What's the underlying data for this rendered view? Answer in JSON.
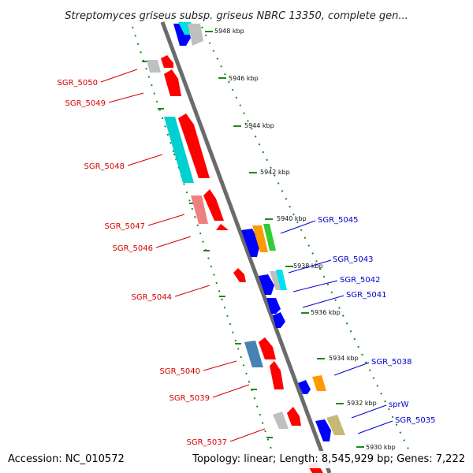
{
  "title": "Streptomyces griseus subsp. griseus NBRC 13350, complete gen...",
  "footer": {
    "accession": "Accession: NC_010572",
    "stats": "Topology: linear; Length: 8,545,929 bp; Genes: 7,222"
  },
  "ticks": [
    "5948 kbp",
    "5946 kbp",
    "5944 kbp",
    "5942 kbp",
    "5940 kbp",
    "5938 kbp",
    "5936 kbp",
    "5934 kbp",
    "5932 kbp",
    "5930 kbp"
  ],
  "genes": [
    {
      "label": "",
      "strand": "plus",
      "color": "#0000ff"
    },
    {
      "label": "",
      "strand": "plus",
      "color": "#00e0e0"
    },
    {
      "label": "",
      "strand": "plus",
      "color": "#c0c0c0"
    },
    {
      "label": "SGR_5050",
      "strand": "minus",
      "color": "#c0c0c0"
    },
    {
      "label": "",
      "strand": "minus",
      "color": "#ff0000"
    },
    {
      "label": "SGR_5049",
      "strand": "minus",
      "color": "#ff0000"
    },
    {
      "label": "SGR_5048",
      "strand": "minus",
      "color": "#00d0d0"
    },
    {
      "label": "",
      "strand": "minus",
      "color": "#ff0000"
    },
    {
      "label": "SGR_5047",
      "strand": "minus",
      "color": "#f08080"
    },
    {
      "label": "SGR_5046",
      "strand": "minus",
      "color": "#ff0000"
    },
    {
      "label": "",
      "strand": "minus",
      "color": "#ff0000"
    },
    {
      "label": "SGR_5045",
      "strand": "plus",
      "color": "#0000ff"
    },
    {
      "label": "",
      "strand": "plus",
      "color": "#ff9900"
    },
    {
      "label": "",
      "strand": "plus",
      "color": "#33cc33"
    },
    {
      "label": "SGR_5044",
      "strand": "minus",
      "color": "#ff0000"
    },
    {
      "label": "SGR_5043",
      "strand": "plus",
      "color": "#00e0f0"
    },
    {
      "label": "",
      "strand": "plus",
      "color": "#c0c0c0"
    },
    {
      "label": "SGR_5042",
      "strand": "plus",
      "color": "#0000ff"
    },
    {
      "label": "SGR_5041",
      "strand": "plus",
      "color": "#0000ff"
    },
    {
      "label": "",
      "strand": "plus",
      "color": "#0000ff"
    },
    {
      "label": "SGR_5040",
      "strand": "minus",
      "color": "#4682b4"
    },
    {
      "label": "",
      "strand": "minus",
      "color": "#ff0000"
    },
    {
      "label": "SGR_5039",
      "strand": "minus",
      "color": "#ff0000"
    },
    {
      "label": "SGR_5038",
      "strand": "plus",
      "color": "#ff9900"
    },
    {
      "label": "",
      "strand": "plus",
      "color": "#0000ff"
    },
    {
      "label": "SGR_5037",
      "strand": "minus",
      "color": "#c0c0c0"
    },
    {
      "label": "",
      "strand": "minus",
      "color": "#ff0000"
    },
    {
      "label": "sprW",
      "strand": "plus",
      "color": "#c8b878"
    },
    {
      "label": "SGR_5035",
      "strand": "plus",
      "color": "#0000ff"
    },
    {
      "label": "",
      "strand": "minus",
      "color": "#ff0000"
    }
  ]
}
